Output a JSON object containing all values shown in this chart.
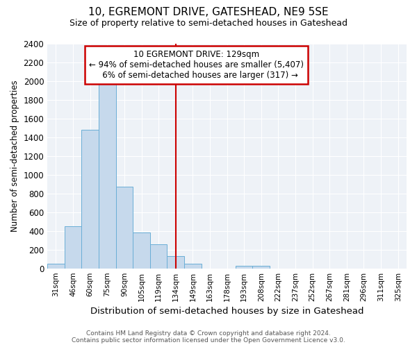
{
  "title": "10, EGREMONT DRIVE, GATESHEAD, NE9 5SE",
  "subtitle": "Size of property relative to semi-detached houses in Gateshead",
  "xlabel": "Distribution of semi-detached houses by size in Gateshead",
  "ylabel": "Number of semi-detached properties",
  "footer": "Contains HM Land Registry data © Crown copyright and database right 2024.\nContains public sector information licensed under the Open Government Licence v3.0.",
  "categories": [
    "31sqm",
    "46sqm",
    "60sqm",
    "75sqm",
    "90sqm",
    "105sqm",
    "119sqm",
    "134sqm",
    "149sqm",
    "163sqm",
    "178sqm",
    "193sqm",
    "208sqm",
    "222sqm",
    "237sqm",
    "252sqm",
    "267sqm",
    "281sqm",
    "296sqm",
    "311sqm",
    "325sqm"
  ],
  "values": [
    50,
    450,
    1480,
    2000,
    870,
    380,
    255,
    130,
    50,
    0,
    0,
    30,
    30,
    0,
    0,
    0,
    0,
    0,
    0,
    0,
    0
  ],
  "bar_color": "#c6d9ec",
  "bar_edge_color": "#6aaed6",
  "property_label": "10 EGREMONT DRIVE: 129sqm",
  "pct_smaller": 94,
  "count_smaller": 5407,
  "pct_larger": 6,
  "count_larger": 317,
  "vline_color": "#cc0000",
  "annotation_box_color": "#cc0000",
  "vline_x_index": 7,
  "ylim": [
    0,
    2400
  ],
  "yticks": [
    0,
    200,
    400,
    600,
    800,
    1000,
    1200,
    1400,
    1600,
    1800,
    2000,
    2200,
    2400
  ],
  "bg_color": "#eef2f7",
  "grid_color": "#ffffff"
}
